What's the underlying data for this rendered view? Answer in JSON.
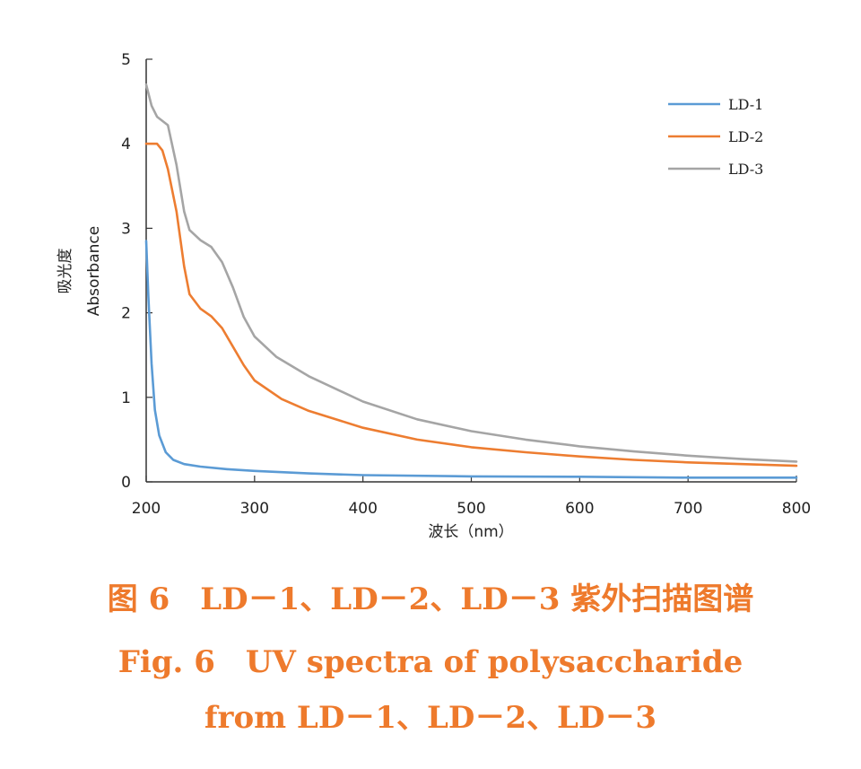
{
  "chart_data": {
    "type": "line",
    "xlabel": "波长（nm）",
    "ylabel_cn": "吸光度",
    "ylabel_en": "Absorbance",
    "xlim": [
      200,
      800
    ],
    "ylim": [
      0,
      5
    ],
    "xticks": [
      200,
      300,
      400,
      500,
      600,
      700,
      800
    ],
    "yticks": [
      0,
      1,
      2,
      3,
      4,
      5
    ],
    "grid": false,
    "legend_position": "top-right",
    "series": [
      {
        "name": "LD-1",
        "color": "#5b9bd5",
        "points": [
          [
            200,
            2.85
          ],
          [
            202,
            2.2
          ],
          [
            205,
            1.4
          ],
          [
            208,
            0.85
          ],
          [
            212,
            0.55
          ],
          [
            218,
            0.35
          ],
          [
            225,
            0.26
          ],
          [
            235,
            0.21
          ],
          [
            250,
            0.18
          ],
          [
            275,
            0.15
          ],
          [
            300,
            0.13
          ],
          [
            350,
            0.1
          ],
          [
            400,
            0.08
          ],
          [
            500,
            0.065
          ],
          [
            600,
            0.06
          ],
          [
            700,
            0.05
          ],
          [
            800,
            0.05
          ]
        ]
      },
      {
        "name": "LD-2",
        "color": "#ed7d31",
        "points": [
          [
            200,
            4.0
          ],
          [
            210,
            4.0
          ],
          [
            215,
            3.92
          ],
          [
            220,
            3.7
          ],
          [
            228,
            3.2
          ],
          [
            235,
            2.55
          ],
          [
            240,
            2.22
          ],
          [
            250,
            2.05
          ],
          [
            260,
            1.96
          ],
          [
            270,
            1.82
          ],
          [
            280,
            1.6
          ],
          [
            290,
            1.38
          ],
          [
            300,
            1.2
          ],
          [
            325,
            0.98
          ],
          [
            350,
            0.84
          ],
          [
            400,
            0.64
          ],
          [
            450,
            0.5
          ],
          [
            500,
            0.41
          ],
          [
            550,
            0.35
          ],
          [
            600,
            0.3
          ],
          [
            650,
            0.26
          ],
          [
            700,
            0.23
          ],
          [
            750,
            0.21
          ],
          [
            800,
            0.19
          ]
        ]
      },
      {
        "name": "LD-3",
        "color": "#a5a5a5",
        "points": [
          [
            200,
            4.7
          ],
          [
            205,
            4.45
          ],
          [
            210,
            4.32
          ],
          [
            220,
            4.22
          ],
          [
            228,
            3.75
          ],
          [
            235,
            3.2
          ],
          [
            240,
            2.98
          ],
          [
            250,
            2.86
          ],
          [
            260,
            2.78
          ],
          [
            270,
            2.6
          ],
          [
            280,
            2.3
          ],
          [
            290,
            1.95
          ],
          [
            300,
            1.72
          ],
          [
            320,
            1.48
          ],
          [
            350,
            1.25
          ],
          [
            400,
            0.95
          ],
          [
            450,
            0.74
          ],
          [
            500,
            0.6
          ],
          [
            550,
            0.5
          ],
          [
            600,
            0.42
          ],
          [
            650,
            0.36
          ],
          [
            700,
            0.31
          ],
          [
            750,
            0.27
          ],
          [
            800,
            0.24
          ]
        ]
      }
    ]
  },
  "caption": {
    "cn": "图 6　LD－1、LD－2、LD－3 紫外扫描图谱",
    "en_line1": "Fig. 6　UV spectra of polysaccharide",
    "en_line2": "from LD－1、LD－2、LD－3"
  }
}
